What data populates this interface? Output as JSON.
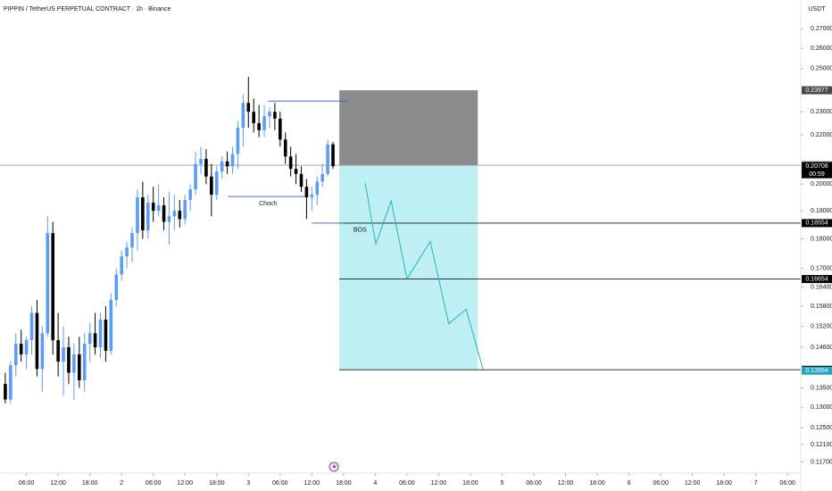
{
  "chart_data": {
    "type": "candlestick",
    "title": "PIPPIN / TetherUS PERPETUAL CONTRACT · 1h · Binance",
    "currency": "USDT",
    "log_scale": true,
    "up_color": "#5b9cf6",
    "down_color": "#000000",
    "x": [
      -4,
      -3,
      -2,
      -1,
      0,
      1,
      2,
      3,
      4,
      5,
      6,
      7,
      8,
      9,
      10,
      11,
      12,
      13,
      14,
      15,
      16,
      17,
      18,
      19,
      20,
      21,
      22,
      23,
      24,
      25,
      26,
      27,
      28,
      29,
      30,
      31,
      32,
      33,
      34,
      35,
      36,
      37,
      38,
      39,
      40,
      41,
      42,
      43,
      44,
      45,
      46,
      47,
      48,
      49,
      50,
      51,
      52,
      53,
      54,
      55,
      56,
      57,
      58
    ],
    "open": [
      0.136,
      0.132,
      0.141,
      0.147,
      0.144,
      0.148,
      0.156,
      0.14,
      0.15,
      0.182,
      0.148,
      0.142,
      0.146,
      0.139,
      0.144,
      0.137,
      0.147,
      0.15,
      0.146,
      0.154,
      0.145,
      0.16,
      0.168,
      0.174,
      0.177,
      0.182,
      0.195,
      0.183,
      0.193,
      0.19,
      0.192,
      0.186,
      0.188,
      0.19,
      0.187,
      0.194,
      0.198,
      0.208,
      0.21,
      0.203,
      0.196,
      0.205,
      0.209,
      0.207,
      0.212,
      0.223,
      0.234,
      0.23,
      0.225,
      0.222,
      0.228,
      0.23,
      0.227,
      0.218,
      0.211,
      0.206,
      0.204,
      0.199,
      0.195,
      0.196,
      0.201,
      0.204,
      0.216
    ],
    "high": [
      0.139,
      0.142,
      0.15,
      0.151,
      0.149,
      0.158,
      0.16,
      0.152,
      0.188,
      0.186,
      0.156,
      0.152,
      0.149,
      0.147,
      0.149,
      0.15,
      0.153,
      0.156,
      0.156,
      0.158,
      0.162,
      0.17,
      0.176,
      0.179,
      0.184,
      0.198,
      0.201,
      0.196,
      0.199,
      0.2,
      0.195,
      0.197,
      0.196,
      0.194,
      0.196,
      0.2,
      0.213,
      0.215,
      0.214,
      0.208,
      0.207,
      0.211,
      0.213,
      0.215,
      0.226,
      0.238,
      0.246,
      0.236,
      0.233,
      0.233,
      0.232,
      0.234,
      0.23,
      0.221,
      0.215,
      0.212,
      0.207,
      0.202,
      0.199,
      0.203,
      0.208,
      0.218,
      0.217
    ],
    "low": [
      0.131,
      0.131,
      0.138,
      0.142,
      0.14,
      0.144,
      0.138,
      0.134,
      0.149,
      0.144,
      0.138,
      0.133,
      0.136,
      0.132,
      0.135,
      0.134,
      0.142,
      0.144,
      0.143,
      0.142,
      0.144,
      0.158,
      0.166,
      0.17,
      0.172,
      0.176,
      0.18,
      0.18,
      0.186,
      0.188,
      0.183,
      0.178,
      0.183,
      0.184,
      0.185,
      0.19,
      0.196,
      0.204,
      0.2,
      0.188,
      0.194,
      0.202,
      0.204,
      0.204,
      0.206,
      0.215,
      0.223,
      0.221,
      0.219,
      0.219,
      0.223,
      0.222,
      0.215,
      0.208,
      0.203,
      0.2,
      0.197,
      0.187,
      0.19,
      0.192,
      0.199,
      0.203,
      0.206
    ],
    "close": [
      0.132,
      0.141,
      0.147,
      0.144,
      0.148,
      0.156,
      0.14,
      0.15,
      0.182,
      0.148,
      0.142,
      0.146,
      0.139,
      0.144,
      0.137,
      0.147,
      0.15,
      0.146,
      0.154,
      0.145,
      0.16,
      0.168,
      0.174,
      0.177,
      0.182,
      0.195,
      0.183,
      0.193,
      0.19,
      0.192,
      0.186,
      0.188,
      0.19,
      0.187,
      0.194,
      0.198,
      0.208,
      0.21,
      0.203,
      0.196,
      0.205,
      0.209,
      0.207,
      0.212,
      0.223,
      0.234,
      0.23,
      0.225,
      0.222,
      0.228,
      0.23,
      0.227,
      0.218,
      0.211,
      0.206,
      0.204,
      0.199,
      0.195,
      0.196,
      0.201,
      0.204,
      0.216,
      0.20708
    ],
    "xlim": [
      -5,
      146.5
    ],
    "ylim": [
      0.1145,
      0.2854
    ],
    "xticks": [
      {
        "value": 0,
        "label": "06:00"
      },
      {
        "value": 6,
        "label": "12:00"
      },
      {
        "value": 12,
        "label": "18:00"
      },
      {
        "value": 18,
        "label": "2"
      },
      {
        "value": 24,
        "label": "06:00"
      },
      {
        "value": 30,
        "label": "12:00"
      },
      {
        "value": 36,
        "label": "18:00"
      },
      {
        "value": 42,
        "label": "3"
      },
      {
        "value": 48,
        "label": "06:00"
      },
      {
        "value": 54,
        "label": "12:00"
      },
      {
        "value": 60,
        "label": "18:00"
      },
      {
        "value": 66,
        "label": "4"
      },
      {
        "value": 72,
        "label": "06:00"
      },
      {
        "value": 78,
        "label": "12:00"
      },
      {
        "value": 84,
        "label": "18:00"
      },
      {
        "value": 90,
        "label": "5"
      },
      {
        "value": 96,
        "label": "06:00"
      },
      {
        "value": 102,
        "label": "12:00"
      },
      {
        "value": 108,
        "label": "18:00"
      },
      {
        "value": 114,
        "label": "6"
      },
      {
        "value": 120,
        "label": "06:00"
      },
      {
        "value": 126,
        "label": "12:00"
      },
      {
        "value": 132,
        "label": "18:00"
      },
      {
        "value": 138,
        "label": "7"
      },
      {
        "value": 144,
        "label": "06:00"
      }
    ],
    "yticks": [
      {
        "value": 0.27,
        "label": "0.27000"
      },
      {
        "value": 0.26,
        "label": "0.26000"
      },
      {
        "value": 0.25,
        "label": "0.25000"
      },
      {
        "value": 0.23,
        "label": "0.23000"
      },
      {
        "value": 0.22,
        "label": "0.22000"
      },
      {
        "value": 0.2,
        "label": "0.20000"
      },
      {
        "value": 0.19,
        "label": "0.19000"
      },
      {
        "value": 0.18,
        "label": "0.18000"
      },
      {
        "value": 0.17,
        "label": "0.17000"
      },
      {
        "value": 0.164,
        "label": "0.16400"
      },
      {
        "value": 0.158,
        "label": "0.15800"
      },
      {
        "value": 0.152,
        "label": "0.15200"
      },
      {
        "value": 0.146,
        "label": "0.14600"
      },
      {
        "value": 0.135,
        "label": "0.13500"
      },
      {
        "value": 0.13,
        "label": "0.13000"
      },
      {
        "value": 0.125,
        "label": "0.12500"
      },
      {
        "value": 0.121,
        "label": "0.12100"
      },
      {
        "value": 0.117,
        "label": "0.11700"
      }
    ],
    "price_labels": [
      {
        "value": 0.23977,
        "color": "#4a4a4a"
      },
      {
        "value": 0.20747,
        "color": "#787b86",
        "line": "full"
      },
      {
        "value": 0.20708,
        "color": "#000000",
        "countdown": "00:59"
      },
      {
        "value": 0.18554,
        "color": "#000000",
        "line": "position"
      },
      {
        "value": 0.16654,
        "color": "#000000",
        "line": "position"
      },
      {
        "value": 0.13978,
        "color": "#000000",
        "line": "position"
      },
      {
        "value": 0.13954,
        "color": "#26a5c3"
      }
    ],
    "position": {
      "stop": 0.23977,
      "entry": 0.20747,
      "target": 0.13978,
      "x_start": 59.2,
      "x_end": 85.4,
      "stop_color": "#8c8c8c",
      "target_color": "#bdeff3"
    },
    "annotations": [
      {
        "price": 0.2348,
        "x": [
          45.7,
          60.9
        ],
        "color": "#3d6fd8"
      },
      {
        "text": "Choch",
        "price": 0.1953,
        "x": [
          38.1,
          53.3
        ],
        "color": "#3d6fd8"
      },
      {
        "text": "BOS",
        "price": 0.18554,
        "x": [
          54,
          60
        ],
        "color": "#3d6fd8"
      }
    ],
    "projection": {
      "color": "#2ab3b8",
      "x": [
        64.1,
        66.1,
        69,
        72,
        76.4,
        79.9,
        83.2,
        86.4
      ],
      "y": [
        0.2004,
        0.1782,
        0.1936,
        0.1666,
        0.1791,
        0.1528,
        0.1571,
        0.1398
      ]
    }
  }
}
